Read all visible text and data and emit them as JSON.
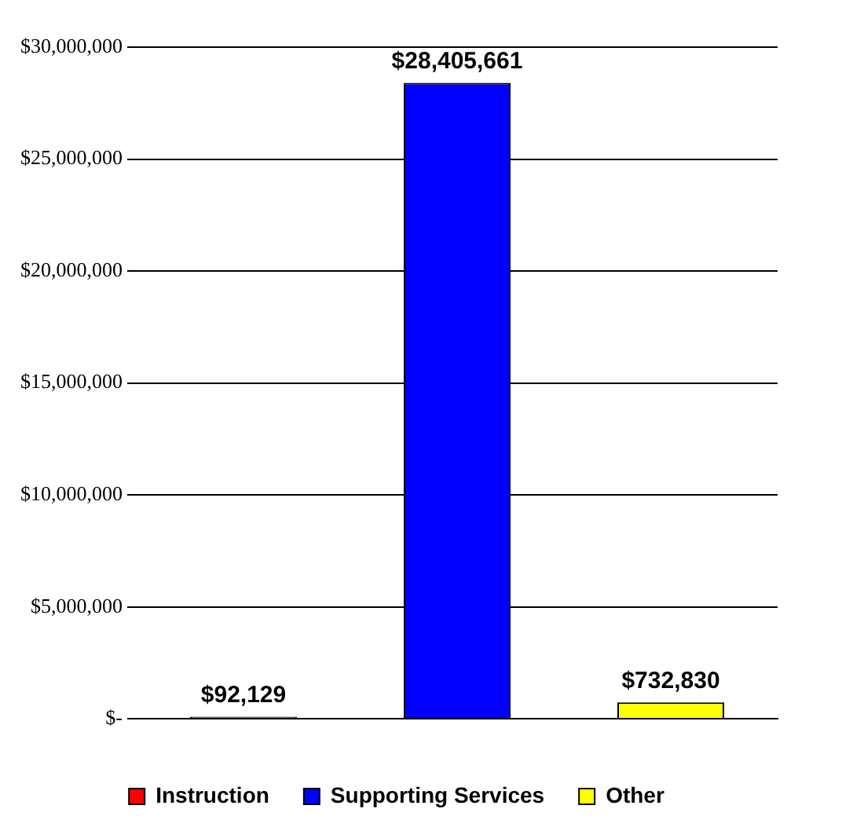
{
  "chart_data": {
    "type": "bar",
    "categories": [
      null,
      null,
      null
    ],
    "series": [
      {
        "name": "Instruction",
        "color": "#ff0000",
        "values": [
          92129,
          null,
          null
        ],
        "value_labels": [
          "$92,129",
          null,
          null
        ]
      },
      {
        "name": "Supporting Services",
        "color": "#0000ff",
        "values": [
          null,
          28405661,
          null
        ],
        "value_labels": [
          null,
          "$28,405,661",
          null
        ]
      },
      {
        "name": "Other",
        "color": "#ffff00",
        "values": [
          null,
          null,
          732830
        ],
        "value_labels": [
          null,
          null,
          "$732,830"
        ]
      }
    ],
    "ylim": [
      0,
      30000000
    ],
    "yticks": [
      {
        "value": 0,
        "label": "$-"
      },
      {
        "value": 5000000,
        "label": "$5,000,000"
      },
      {
        "value": 10000000,
        "label": "$10,000,000"
      },
      {
        "value": 15000000,
        "label": "$15,000,000"
      },
      {
        "value": 20000000,
        "label": "$20,000,000"
      },
      {
        "value": 25000000,
        "label": "$25,000,000"
      },
      {
        "value": 30000000,
        "label": "$30,000,000"
      }
    ],
    "grid": "y",
    "legend": "bottom"
  }
}
